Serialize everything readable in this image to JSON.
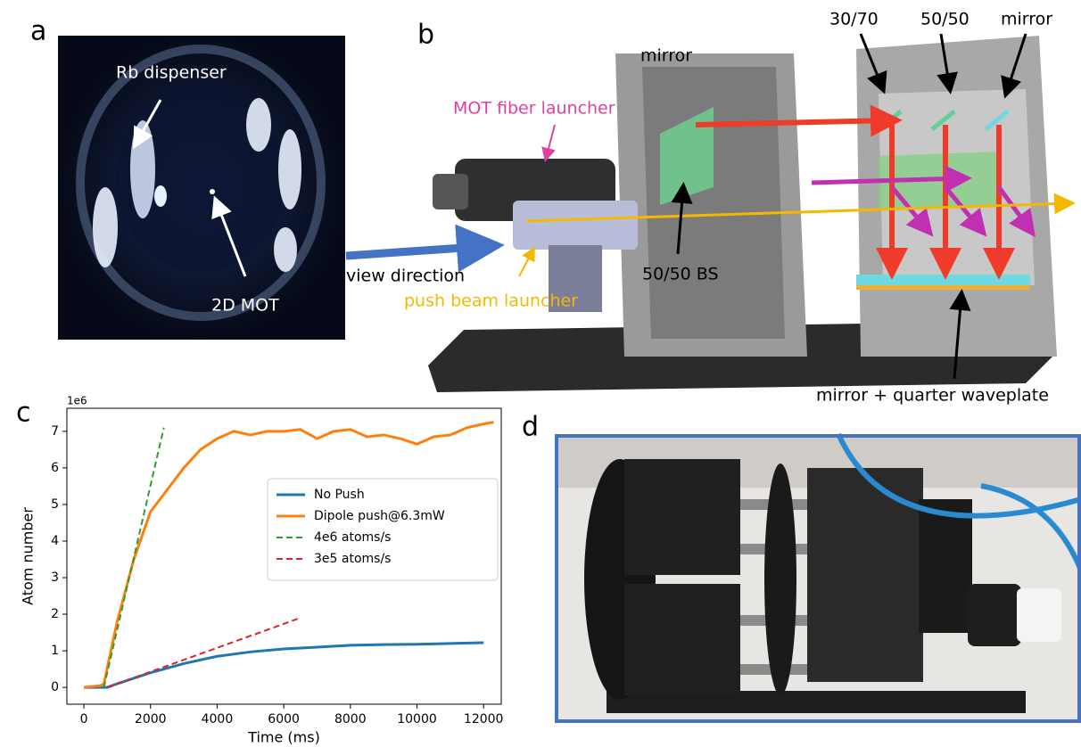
{
  "panels": {
    "a": {
      "label": "a",
      "annotations": [
        "Rb dispenser",
        "2D MOT"
      ]
    },
    "b": {
      "label": "b",
      "annotations": [
        "mirror",
        "30/70",
        "50/50",
        "mirror",
        "MOT fiber launcher",
        "view direction",
        "50/50 BS",
        "push beam launcher",
        "mirror + quarter waveplate"
      ]
    },
    "c": {
      "label": "c"
    },
    "d": {
      "label": "d"
    }
  },
  "chart_data": {
    "type": "line",
    "xlabel": "Time (ms)",
    "ylabel": "Atom number",
    "y_offset_label": "1e6",
    "xlim": [
      -510,
      12530
    ],
    "ylim": [
      -0.46,
      7.63
    ],
    "xticks": [
      0,
      2000,
      4000,
      6000,
      8000,
      10000,
      12000
    ],
    "yticks": [
      0,
      1,
      2,
      3,
      4,
      5,
      6,
      7
    ],
    "legend": "center right",
    "grid": false,
    "series": [
      {
        "name": "No Push",
        "color": "#1f77b4",
        "linestyle": "solid",
        "x": [
          0,
          700,
          1000,
          2000,
          3000,
          4000,
          5000,
          6000,
          7000,
          8000,
          9000,
          10000,
          11000,
          12000
        ],
        "values": [
          0,
          0,
          0.1,
          0.4,
          0.65,
          0.85,
          0.97,
          1.05,
          1.1,
          1.15,
          1.17,
          1.18,
          1.2,
          1.22
        ]
      },
      {
        "name": "Dipole push@6.3mW",
        "color": "#ff7f0e",
        "linestyle": "solid",
        "x": [
          0,
          500,
          600,
          1000,
          1500,
          2000,
          2500,
          3000,
          3500,
          4000,
          4500,
          5000,
          5500,
          6000,
          6500,
          7000,
          7500,
          8000,
          8500,
          9000,
          9500,
          10000,
          10500,
          11000,
          11500,
          12000,
          12300
        ],
        "values": [
          0,
          0.05,
          0.1,
          1.8,
          3.5,
          4.8,
          5.4,
          6.0,
          6.5,
          6.8,
          7.0,
          6.9,
          7.0,
          7.0,
          7.05,
          6.8,
          7.0,
          7.05,
          6.85,
          6.9,
          6.8,
          6.65,
          6.85,
          6.9,
          7.1,
          7.2,
          7.25
        ]
      },
      {
        "name": "4e6 atoms/s",
        "color": "#2ca02c",
        "linestyle": "dashed",
        "x": [
          600,
          2400
        ],
        "values": [
          0,
          7.1
        ]
      },
      {
        "name": "3e5 atoms/s",
        "color": "#d62728",
        "linestyle": "dashed",
        "x": [
          700,
          6500
        ],
        "values": [
          0,
          1.9
        ]
      }
    ]
  }
}
